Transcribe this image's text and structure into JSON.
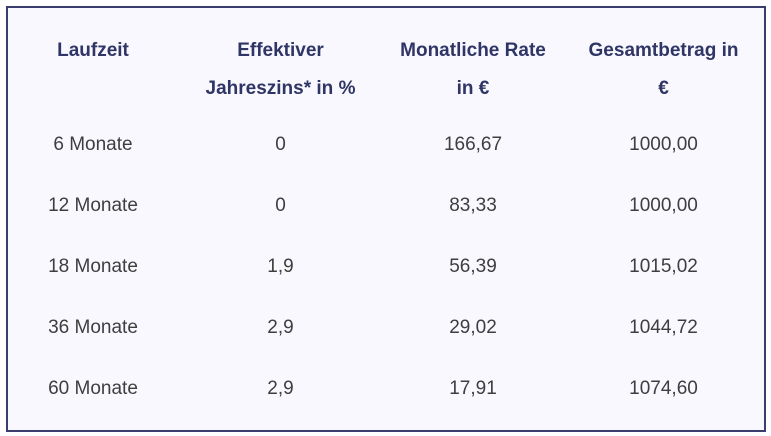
{
  "table": {
    "headers": [
      {
        "line1": "Laufzeit",
        "line2": ""
      },
      {
        "line1": "Effektiver",
        "line2": "Jahreszins* in %"
      },
      {
        "line1": "Monatliche Rate",
        "line2": "in €"
      },
      {
        "line1": "Gesamtbetrag in",
        "line2": "€"
      }
    ],
    "rows": [
      [
        "6 Monate",
        "0",
        "166,67",
        "1000,00"
      ],
      [
        "12 Monate",
        "0",
        "83,33",
        "1000,00"
      ],
      [
        "18 Monate",
        "1,9",
        "56,39",
        "1015,02"
      ],
      [
        "36 Monate",
        "2,9",
        "29,02",
        "1044,72"
      ],
      [
        "60 Monate",
        "2,9",
        "17,91",
        "1074,60"
      ]
    ]
  }
}
